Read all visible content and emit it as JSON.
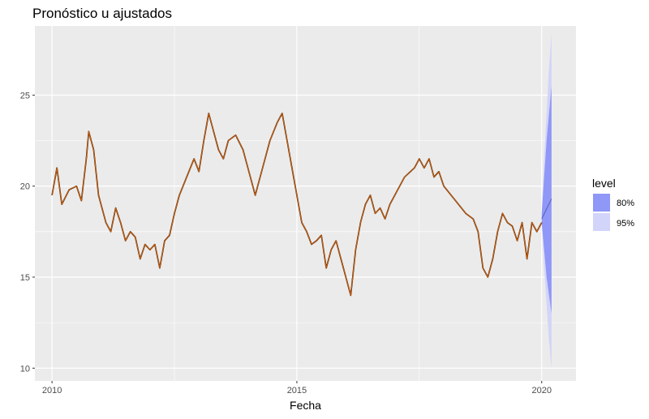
{
  "chart_data": {
    "type": "line",
    "title": "Pronóstico u ajustados",
    "xlabel": "Fecha",
    "ylabel": "",
    "xlim": [
      2009.65,
      2020.7
    ],
    "ylim": [
      9.3,
      28.8
    ],
    "x_ticks": [
      2010,
      2015,
      2020
    ],
    "x_tick_labels": [
      "2010",
      "2015",
      "2020"
    ],
    "y_ticks": [
      10,
      15,
      20,
      25
    ],
    "y_tick_labels": [
      "10",
      "15",
      "20",
      "25"
    ],
    "grid": true,
    "legend": {
      "title": "level",
      "placement": "right",
      "entries": [
        {
          "label": "80%",
          "color": "#8f97f7"
        },
        {
          "label": "95%",
          "color": "#d2d4f9"
        }
      ]
    },
    "colors": {
      "panel": "#ebebeb",
      "grid": "#ffffff",
      "actual": "#000000",
      "fitted": "#d95f02",
      "forecast": "#4a50a8",
      "band80": "#8f97f7",
      "band95": "#d2d4f9"
    },
    "series": [
      {
        "role": "fitted",
        "x": [
          2010.0,
          2010.1,
          2010.2,
          2010.35,
          2010.5,
          2010.6,
          2010.7,
          2010.75,
          2010.85,
          2010.95,
          2011.1,
          2011.2,
          2011.3,
          2011.4,
          2011.5,
          2011.6,
          2011.7,
          2011.8,
          2011.9,
          2012.0,
          2012.1,
          2012.2,
          2012.3,
          2012.4,
          2012.5,
          2012.6,
          2012.75,
          2012.9,
          2013.0,
          2013.1,
          2013.2,
          2013.3,
          2013.4,
          2013.5,
          2013.6,
          2013.75,
          2013.9,
          2014.0,
          2014.15,
          2014.3,
          2014.45,
          2014.6,
          2014.7,
          2014.8,
          2014.9,
          2015.0,
          2015.1,
          2015.2,
          2015.3,
          2015.4,
          2015.5,
          2015.6,
          2015.7,
          2015.8,
          2015.9,
          2016.0,
          2016.1,
          2016.2,
          2016.3,
          2016.4,
          2016.5,
          2016.6,
          2016.7,
          2016.8,
          2016.9,
          2017.0,
          2017.2,
          2017.4,
          2017.5,
          2017.6,
          2017.7,
          2017.8,
          2017.9,
          2018.0,
          2018.15,
          2018.3,
          2018.45,
          2018.6,
          2018.7,
          2018.8,
          2018.9,
          2019.0,
          2019.1,
          2019.2,
          2019.3,
          2019.4,
          2019.5,
          2019.6,
          2019.7,
          2019.8,
          2019.9,
          2020.0
        ],
        "y": [
          19.5,
          21.0,
          19.0,
          19.8,
          20.0,
          19.2,
          21.5,
          23.0,
          22.0,
          19.5,
          18.0,
          17.5,
          18.8,
          18.0,
          17.0,
          17.5,
          17.2,
          16.0,
          16.8,
          16.5,
          16.8,
          15.5,
          17.0,
          17.3,
          18.5,
          19.5,
          20.5,
          21.5,
          20.8,
          22.5,
          24.0,
          23.0,
          22.0,
          21.5,
          22.5,
          22.8,
          22.0,
          21.0,
          19.5,
          21.0,
          22.5,
          23.5,
          24.0,
          22.5,
          21.0,
          19.5,
          18.0,
          17.5,
          16.8,
          17.0,
          17.3,
          15.5,
          16.5,
          17.0,
          16.0,
          15.0,
          14.0,
          16.5,
          18.0,
          19.0,
          19.5,
          18.5,
          18.8,
          18.2,
          19.0,
          19.5,
          20.5,
          21.0,
          21.5,
          21.0,
          21.5,
          20.5,
          20.8,
          20.0,
          19.5,
          19.0,
          18.5,
          18.2,
          17.5,
          15.5,
          15.0,
          16.0,
          17.5,
          18.5,
          18.0,
          17.8,
          17.0,
          18.0,
          16.0,
          18.0,
          17.5,
          18.0
        ]
      },
      {
        "role": "forecast",
        "x": [
          2020.0,
          2020.2
        ],
        "y": [
          18.2,
          19.3
        ]
      }
    ],
    "bands": [
      {
        "level": "95%",
        "x": [
          2020.0,
          2020.05,
          2020.1,
          2020.15,
          2020.2
        ],
        "lower": [
          18.0,
          15.5,
          13.5,
          11.5,
          10.0
        ],
        "upper": [
          18.5,
          21.5,
          24.0,
          26.5,
          28.4
        ]
      },
      {
        "level": "80%",
        "x": [
          2020.0,
          2020.05,
          2020.1,
          2020.15,
          2020.2
        ],
        "lower": [
          18.0,
          16.5,
          15.0,
          14.0,
          13.0
        ],
        "upper": [
          18.5,
          20.5,
          22.5,
          24.0,
          25.5
        ]
      }
    ]
  }
}
